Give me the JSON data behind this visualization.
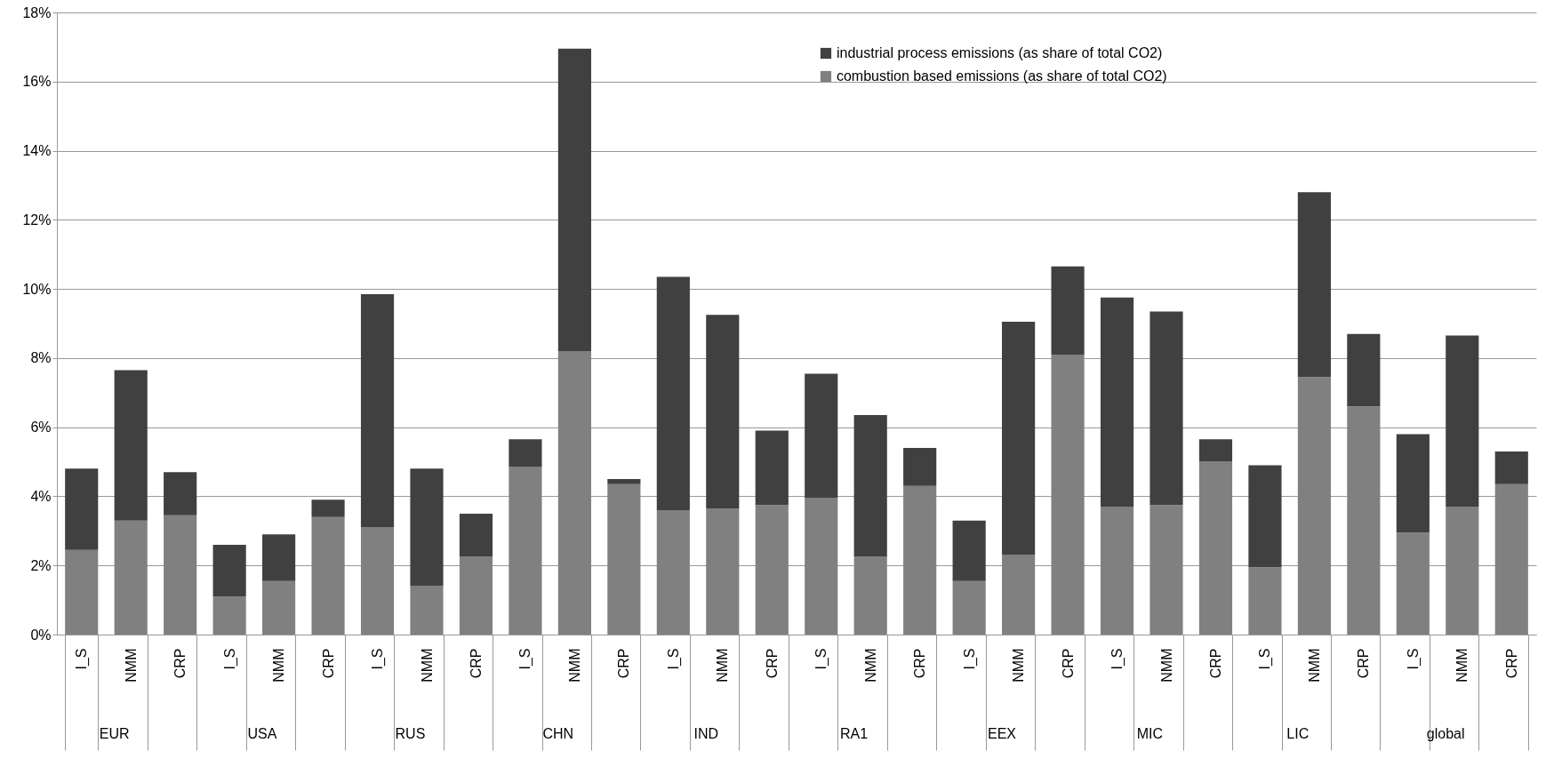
{
  "chart_data": {
    "type": "bar",
    "stacked": true,
    "categories": [
      "I_S",
      "NMM",
      "CRP",
      "I_S",
      "NMM",
      "CRP",
      "I_S",
      "NMM",
      "CRP",
      "I_S",
      "NMM",
      "CRP",
      "I_S",
      "NMM",
      "CRP",
      "I_S",
      "NMM",
      "CRP",
      "I_S",
      "NMM",
      "CRP",
      "I_S",
      "NMM",
      "CRP",
      "I_S",
      "NMM",
      "CRP",
      "I_S",
      "NMM",
      "CRP"
    ],
    "series": [
      {
        "name": "combustion based emissions (as share of total CO2)",
        "color": "#808080",
        "values": [
          2.45,
          3.3,
          3.45,
          1.1,
          1.55,
          3.4,
          3.1,
          1.4,
          2.25,
          4.85,
          8.2,
          4.35,
          3.6,
          3.65,
          3.75,
          3.95,
          2.25,
          4.3,
          1.55,
          2.3,
          8.1,
          3.7,
          3.75,
          5.0,
          1.95,
          7.45,
          6.6,
          2.95,
          3.7,
          4.35
        ]
      },
      {
        "name": "industrial process emissions (as share of total CO2)",
        "color": "#404040",
        "values": [
          2.35,
          4.35,
          1.25,
          1.5,
          1.35,
          0.5,
          6.75,
          3.4,
          1.25,
          0.8,
          8.75,
          0.15,
          6.75,
          5.6,
          2.15,
          3.6,
          4.1,
          1.1,
          1.75,
          6.75,
          2.55,
          6.05,
          5.6,
          0.65,
          2.95,
          5.35,
          2.1,
          2.85,
          4.95,
          0.95
        ]
      }
    ],
    "annotations": [
      "EUR",
      "USA",
      "RUS",
      "CHN",
      "IND",
      "RA1",
      "EEX",
      "MIC",
      "LIC",
      "global"
    ],
    "ylim": [
      0,
      18
    ],
    "yticks": [
      {
        "value": 0,
        "label": "0%"
      },
      {
        "value": 2,
        "label": "2%"
      },
      {
        "value": 4,
        "label": "4%"
      },
      {
        "value": 6,
        "label": "6%"
      },
      {
        "value": 8,
        "label": "8%"
      },
      {
        "value": 10,
        "label": "10%"
      },
      {
        "value": 12,
        "label": "12%"
      },
      {
        "value": 14,
        "label": "14%"
      },
      {
        "value": 16,
        "label": "16%"
      },
      {
        "value": 18,
        "label": "18%"
      }
    ],
    "grid": "y",
    "legend": "top right"
  }
}
